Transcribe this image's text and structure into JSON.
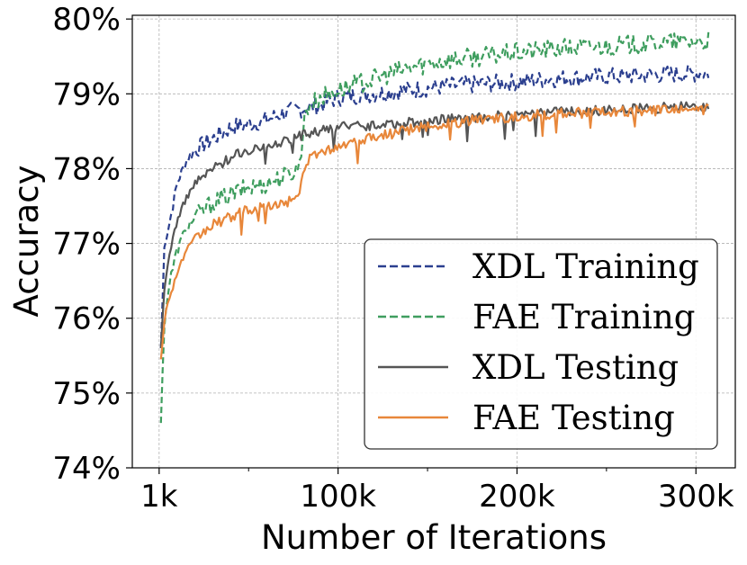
{
  "chart_data": {
    "type": "line",
    "xlabel": "Number of Iterations",
    "ylabel": "Accuracy",
    "xlim": [
      -15000,
      322000
    ],
    "ylim": [
      0.74,
      0.8005
    ],
    "x_ticks": [
      {
        "value": 0,
        "label": "1k"
      },
      {
        "value": 100000,
        "label": "100k"
      },
      {
        "value": 200000,
        "label": "200k"
      },
      {
        "value": 300000,
        "label": "300k"
      }
    ],
    "x_minor_ticks": [
      50000,
      150000,
      250000
    ],
    "y_ticks": [
      {
        "value": 0.74,
        "label": "74%"
      },
      {
        "value": 0.75,
        "label": "75%"
      },
      {
        "value": 0.76,
        "label": "76%"
      },
      {
        "value": 0.77,
        "label": "77%"
      },
      {
        "value": 0.78,
        "label": "78%"
      },
      {
        "value": 0.79,
        "label": "79%"
      },
      {
        "value": 0.8,
        "label": "80%"
      }
    ],
    "grid": true,
    "legend_position": "bottom-right",
    "series": [
      {
        "name": "XDL Training",
        "color": "#2b3f8f",
        "dash": true,
        "x": [
          1000,
          3000,
          6000,
          10000,
          15000,
          20000,
          30000,
          40000,
          50000,
          60000,
          70000,
          80000,
          90000,
          100000,
          120000,
          140000,
          160000,
          180000,
          200000,
          220000,
          240000,
          260000,
          280000,
          300000,
          307000
        ],
        "y": [
          0.756,
          0.77,
          0.773,
          0.778,
          0.781,
          0.7825,
          0.784,
          0.7855,
          0.786,
          0.7865,
          0.7875,
          0.788,
          0.7885,
          0.7895,
          0.79,
          0.7905,
          0.791,
          0.7913,
          0.7916,
          0.792,
          0.7922,
          0.7924,
          0.7926,
          0.7927,
          0.7928
        ],
        "noise": 0.0012
      },
      {
        "name": "FAE Training",
        "color": "#3f9e5f",
        "dash": true,
        "x": [
          1000,
          3000,
          6000,
          10000,
          15000,
          20000,
          30000,
          40000,
          50000,
          60000,
          70000,
          78000,
          82000,
          90000,
          100000,
          120000,
          140000,
          160000,
          180000,
          200000,
          220000,
          240000,
          260000,
          280000,
          300000,
          307000
        ],
        "y": [
          0.746,
          0.76,
          0.765,
          0.769,
          0.772,
          0.7735,
          0.7755,
          0.7765,
          0.7775,
          0.778,
          0.779,
          0.78,
          0.788,
          0.7895,
          0.7905,
          0.792,
          0.7935,
          0.7945,
          0.795,
          0.7955,
          0.796,
          0.7963,
          0.7965,
          0.7968,
          0.797,
          0.797
        ],
        "noise": 0.0013
      },
      {
        "name": "XDL Testing",
        "color": "#555555",
        "dash": false,
        "x": [
          1000,
          3000,
          6000,
          10000,
          15000,
          20000,
          30000,
          40000,
          50000,
          60000,
          70000,
          80000,
          90000,
          100000,
          120000,
          140000,
          160000,
          180000,
          200000,
          220000,
          240000,
          260000,
          280000,
          300000,
          307000
        ],
        "y": [
          0.756,
          0.764,
          0.769,
          0.773,
          0.776,
          0.778,
          0.78,
          0.7815,
          0.7825,
          0.783,
          0.7838,
          0.7845,
          0.785,
          0.7855,
          0.7858,
          0.7862,
          0.7866,
          0.7869,
          0.7872,
          0.7875,
          0.7877,
          0.7879,
          0.7881,
          0.7883,
          0.7884
        ],
        "noise": 0.0007
      },
      {
        "name": "FAE Testing",
        "color": "#e8873a",
        "dash": false,
        "x": [
          1000,
          3000,
          6000,
          10000,
          15000,
          20000,
          30000,
          40000,
          50000,
          60000,
          70000,
          78000,
          82000,
          90000,
          100000,
          120000,
          140000,
          160000,
          180000,
          200000,
          220000,
          240000,
          260000,
          280000,
          300000,
          307000
        ],
        "y": [
          0.7545,
          0.76,
          0.763,
          0.766,
          0.769,
          0.7705,
          0.7725,
          0.7735,
          0.7745,
          0.775,
          0.7755,
          0.776,
          0.781,
          0.7822,
          0.783,
          0.7842,
          0.7852,
          0.786,
          0.7866,
          0.787,
          0.7873,
          0.7875,
          0.7877,
          0.7878,
          0.7879,
          0.7879
        ],
        "noise": 0.0007
      }
    ]
  }
}
